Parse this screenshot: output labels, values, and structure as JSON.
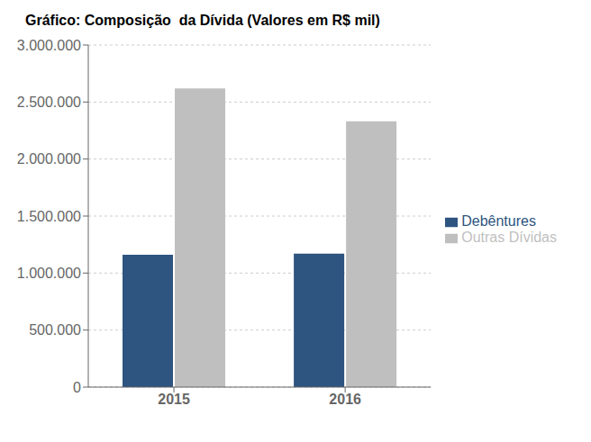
{
  "chart_data": {
    "type": "bar",
    "title": "Gráfico: Composição  da Dívida (Valores em R$ mil)",
    "categories": [
      "2015",
      "2016"
    ],
    "series": [
      {
        "name": "Debêntures",
        "color": "#2E5480",
        "values": [
          1160000,
          1170000
        ]
      },
      {
        "name": "Outras Dívidas",
        "color": "#BFBFBF",
        "values": [
          2620000,
          2330000
        ]
      }
    ],
    "ylim": [
      0,
      3000000
    ],
    "yticks": [
      0,
      {
        "value": 500000,
        "label": "500.000"
      },
      {
        "value": 1000000,
        "label": "1.000.000"
      },
      {
        "value": 1500000,
        "label": "1.500.000"
      },
      {
        "value": 2000000,
        "label": "2.000.000"
      },
      {
        "value": 2500000,
        "label": "2.500.000"
      },
      {
        "value": 3000000,
        "label": "3.000.000"
      }
    ],
    "grid": true,
    "legend": "right"
  }
}
